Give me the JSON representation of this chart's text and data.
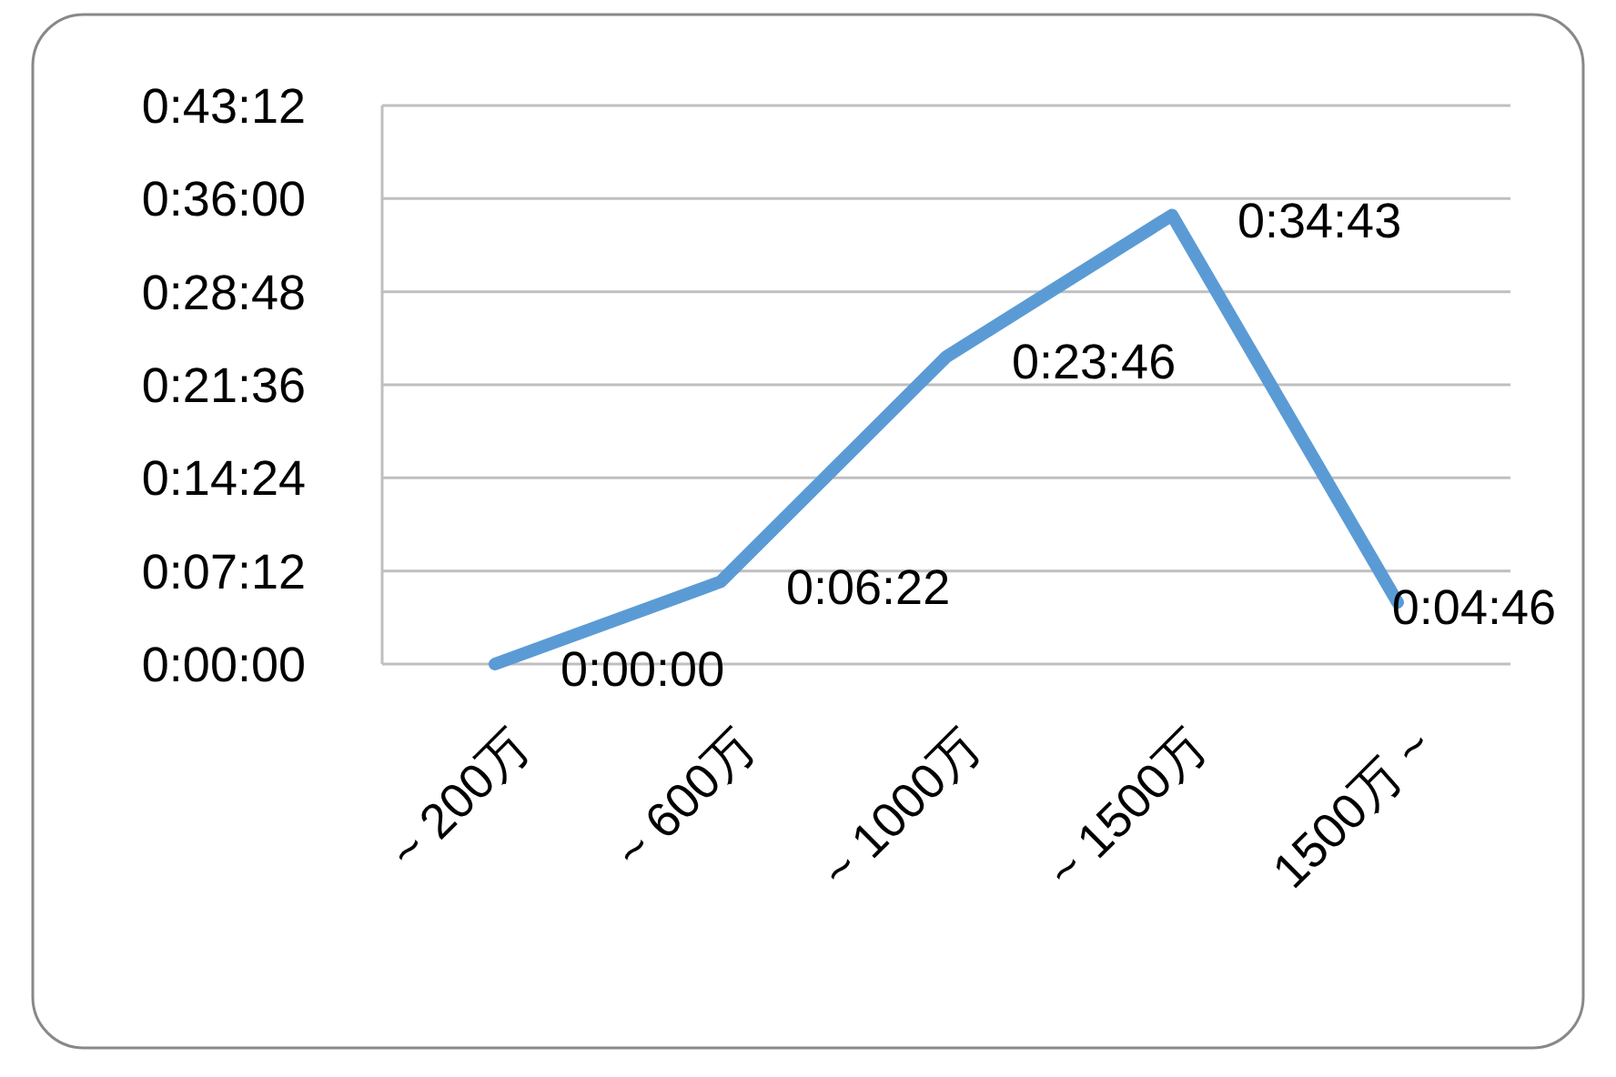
{
  "chart_data": {
    "type": "line",
    "categories": [
      "~ 200万",
      "~ 600万",
      "~ 1000万",
      "~ 1500万",
      "1500万 ~"
    ],
    "series": [
      {
        "color": "#5b9bd5",
        "values": [
          0,
          6.3667,
          23.7667,
          34.7167,
          4.7667
        ],
        "value_labels": [
          "0:00:00",
          "0:06:22",
          "0:23:46",
          "0:34:43",
          "0:04:46"
        ]
      }
    ],
    "ylim": [
      0,
      43.2
    ],
    "yticks": [
      {
        "value": 0,
        "label": "0:00:00"
      },
      {
        "value": 7.2,
        "label": "0:07:12"
      },
      {
        "value": 14.4,
        "label": "0:14:24"
      },
      {
        "value": 21.6,
        "label": "0:21:36"
      },
      {
        "value": 28.8,
        "label": "0:28:48"
      },
      {
        "value": 36,
        "label": "0:36:00"
      },
      {
        "value": 43.2,
        "label": "0:43:12"
      }
    ],
    "grid": "y",
    "marker": "none",
    "line_style": "solid"
  }
}
